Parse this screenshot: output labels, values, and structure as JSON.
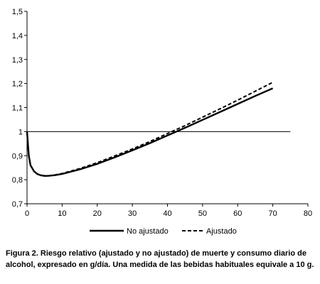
{
  "caption": "Figura 2. Riesgo relativo (ajustado y no ajustado) de muerte y consumo diario de alcohol, expresado en g/día. Una medida de las bebidas habituales equivale a 10 g.",
  "chart_data": {
    "type": "line",
    "title": "",
    "xlabel": "",
    "ylabel": "",
    "xlim": [
      0,
      80
    ],
    "ylim": [
      0.7,
      1.5
    ],
    "x_ticks": [
      0,
      10,
      20,
      30,
      40,
      50,
      60,
      70,
      80
    ],
    "y_ticks": [
      0.7,
      0.8,
      0.9,
      1.0,
      1.1,
      1.2,
      1.3,
      1.4,
      1.5
    ],
    "x_tick_labels": [
      "0",
      "10",
      "20",
      "30",
      "40",
      "50",
      "60",
      "70",
      "80"
    ],
    "y_tick_labels": [
      "0,7",
      "0,8",
      "0,9",
      "1",
      "1,1",
      "1,2",
      "1,3",
      "1,4",
      "1,5"
    ],
    "grid": false,
    "legend_position": "bottom",
    "reference_line": {
      "y": 1.0,
      "x_range": [
        0,
        75
      ]
    },
    "series": [
      {
        "name": "No ajustado",
        "style": "solid",
        "color": "#000000",
        "x": [
          0,
          0.5,
          1,
          2,
          3,
          4,
          5,
          6,
          8,
          10,
          15,
          20,
          25,
          30,
          35,
          40,
          45,
          50,
          55,
          60,
          65,
          70
        ],
        "y": [
          1.0,
          0.9,
          0.86,
          0.835,
          0.823,
          0.818,
          0.816,
          0.816,
          0.819,
          0.824,
          0.843,
          0.866,
          0.893,
          0.922,
          0.952,
          0.984,
          1.016,
          1.049,
          1.082,
          1.115,
          1.148,
          1.18
        ]
      },
      {
        "name": "Ajustado",
        "style": "dashed",
        "color": "#000000",
        "x": [
          0,
          0.5,
          1,
          2,
          3,
          4,
          5,
          6,
          8,
          10,
          15,
          20,
          25,
          30,
          35,
          40,
          45,
          50,
          55,
          60,
          65,
          70
        ],
        "y": [
          1.0,
          0.9,
          0.86,
          0.835,
          0.823,
          0.818,
          0.816,
          0.816,
          0.82,
          0.826,
          0.846,
          0.871,
          0.899,
          0.928,
          0.959,
          0.992,
          1.025,
          1.06,
          1.095,
          1.131,
          1.168,
          1.205
        ]
      }
    ]
  }
}
